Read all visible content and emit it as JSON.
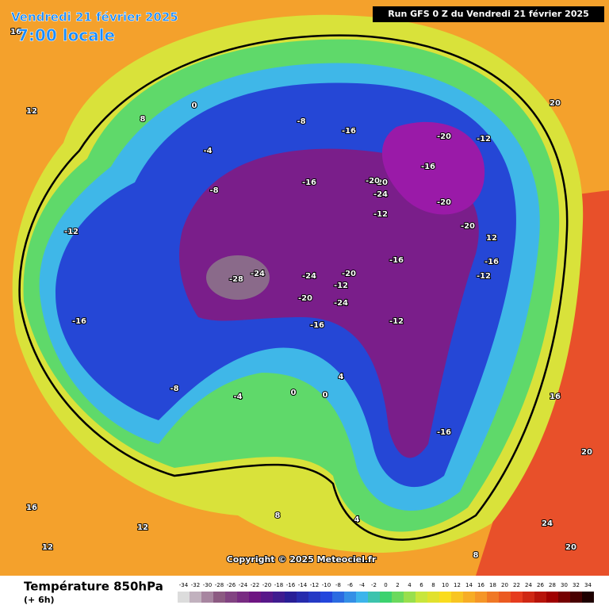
{
  "header": {
    "date": "Vendredi 21 février 2025",
    "time": "7:00 locale",
    "run": "Run GFS 0 Z du Vendredi 21 février 2025"
  },
  "map": {
    "labels": [
      "16",
      "12",
      "8",
      "0",
      "-4",
      "-8",
      "-12",
      "-16",
      "-20",
      "-16",
      "-20",
      "-12",
      "-16",
      "-20",
      "-24",
      "-28",
      "-24",
      "-24",
      "-20",
      "-24",
      "-20",
      "-16",
      "-12",
      "-12",
      "-16",
      "-16",
      "-20",
      "-20",
      "-16",
      "-12",
      "-8",
      "-4",
      "0",
      "4",
      "8",
      "12",
      "16",
      "20",
      "24",
      "20",
      "12",
      "8",
      "4",
      "0",
      "-8",
      "-12",
      "-16",
      "12",
      "16",
      "20"
    ],
    "copyright": "Copyright © 2025 Meteociel.fr"
  },
  "legend": {
    "title": "Température 850hPa",
    "subtitle": "(+ 6h)",
    "ticks": [
      -34,
      -32,
      -30,
      -28,
      -26,
      -24,
      -22,
      -20,
      -18,
      -16,
      -14,
      -12,
      -10,
      -8,
      -6,
      -4,
      -2,
      0,
      2,
      4,
      6,
      8,
      10,
      12,
      14,
      16,
      18,
      20,
      22,
      24,
      26,
      28,
      30,
      32,
      34
    ]
  }
}
